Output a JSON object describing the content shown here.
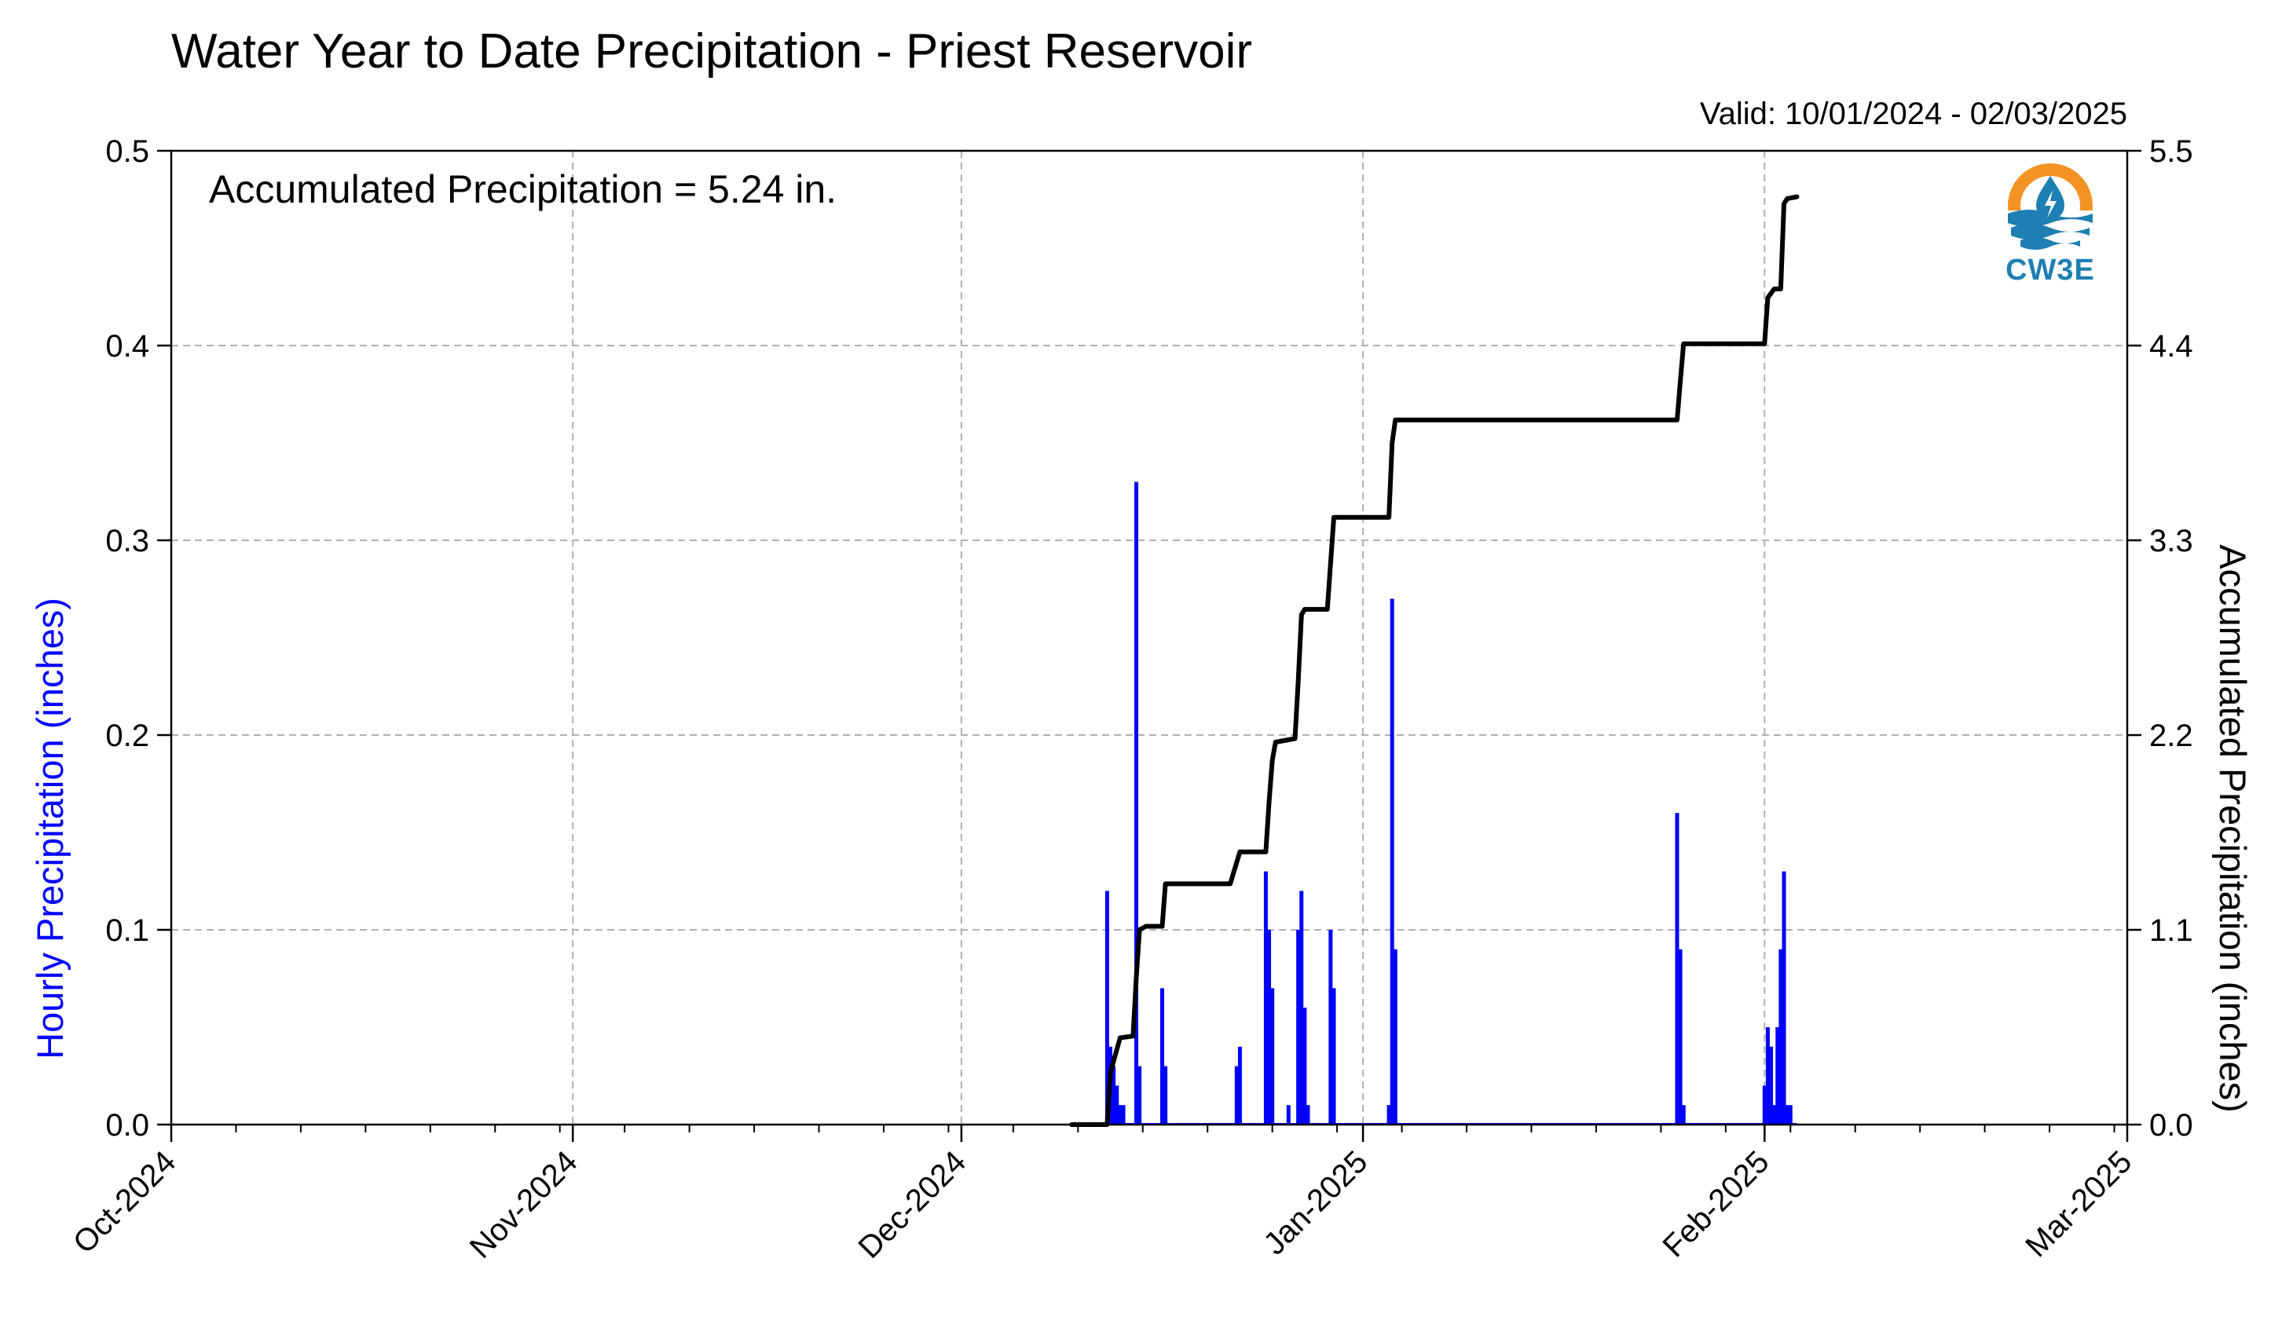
{
  "header": {
    "title": "Water Year to Date Precipitation - Priest Reservoir",
    "valid": "Valid: 10/01/2024 - 02/03/2025"
  },
  "annotation": "Accumulated Precipitation = 5.24 in.",
  "logo": {
    "text": "CW3E",
    "icon": "cw3e-logo-icon"
  },
  "colors": {
    "hourly": "#0000ff",
    "accumulated": "#000000",
    "grid": "#b0b0b0",
    "logo_orange": "#f39324",
    "logo_blue": "#1e7fb3"
  },
  "chart_data": {
    "type": "bar",
    "xlabel": "",
    "ylabel": "Hourly Precipitation (inches)",
    "y2label": "Accumulated Precipitation (inches)",
    "xlim": [
      "2024-10-01",
      "2025-03-01"
    ],
    "ylim": [
      0,
      0.5
    ],
    "y2lim": [
      0,
      5.5
    ],
    "grid": true,
    "x_ticks": [
      {
        "date": "2024-10-01",
        "label": "Oct-2024"
      },
      {
        "date": "2024-11-01",
        "label": "Nov-2024"
      },
      {
        "date": "2024-12-01",
        "label": "Dec-2024"
      },
      {
        "date": "2025-01-01",
        "label": "Jan-2025"
      },
      {
        "date": "2025-02-01",
        "label": "Feb-2025"
      },
      {
        "date": "2025-03-01",
        "label": "Mar-2025"
      }
    ],
    "y_ticks": [
      "0.0",
      "0.1",
      "0.2",
      "0.3",
      "0.4",
      "0.5"
    ],
    "y2_ticks": [
      "0.0",
      "1.1",
      "2.2",
      "3.3",
      "4.4",
      "5.5"
    ],
    "series": [
      {
        "name": "Hourly Precipitation",
        "kind": "bar",
        "points": [
          [
            "2024-12-12 06:00",
            0.12
          ],
          [
            "2024-12-12 12:00",
            0.04
          ],
          [
            "2024-12-12 18:00",
            0.03
          ],
          [
            "2024-12-13 00:00",
            0.02
          ],
          [
            "2024-12-13 06:00",
            0.01
          ],
          [
            "2024-12-13 12:00",
            0.01
          ],
          [
            "2024-12-14 12:00",
            0.33
          ],
          [
            "2024-12-14 18:00",
            0.03
          ],
          [
            "2024-12-16 12:00",
            0.07
          ],
          [
            "2024-12-16 18:00",
            0.03
          ],
          [
            "2024-12-22 06:00",
            0.03
          ],
          [
            "2024-12-22 12:00",
            0.04
          ],
          [
            "2024-12-24 12:00",
            0.13
          ],
          [
            "2024-12-24 18:00",
            0.1
          ],
          [
            "2024-12-25 00:00",
            0.07
          ],
          [
            "2024-12-26 06:00",
            0.01
          ],
          [
            "2024-12-27 00:00",
            0.1
          ],
          [
            "2024-12-27 06:00",
            0.12
          ],
          [
            "2024-12-27 12:00",
            0.06
          ],
          [
            "2024-12-27 18:00",
            0.01
          ],
          [
            "2024-12-29 12:00",
            0.1
          ],
          [
            "2024-12-29 18:00",
            0.07
          ],
          [
            "2025-01-03 00:00",
            0.01
          ],
          [
            "2025-01-03 06:00",
            0.27
          ],
          [
            "2025-01-03 12:00",
            0.09
          ],
          [
            "2025-01-25 06:00",
            0.16
          ],
          [
            "2025-01-25 12:00",
            0.09
          ],
          [
            "2025-01-25 18:00",
            0.01
          ],
          [
            "2025-02-01 00:00",
            0.02
          ],
          [
            "2025-02-01 06:00",
            0.05
          ],
          [
            "2025-02-01 12:00",
            0.04
          ],
          [
            "2025-02-01 18:00",
            0.01
          ],
          [
            "2025-02-02 00:00",
            0.05
          ],
          [
            "2025-02-02 06:00",
            0.09
          ],
          [
            "2025-02-02 12:00",
            0.13
          ],
          [
            "2025-02-02 18:00",
            0.01
          ],
          [
            "2025-02-03 00:00",
            0.01
          ]
        ]
      },
      {
        "name": "Accumulated Precipitation",
        "kind": "line",
        "points": [
          [
            "2024-12-09 12:00",
            0.0
          ],
          [
            "2024-12-12 06:00",
            0.0
          ],
          [
            "2024-12-12 12:00",
            0.29
          ],
          [
            "2024-12-12 18:00",
            0.36
          ],
          [
            "2024-12-13 06:00",
            0.49
          ],
          [
            "2024-12-14 06:00",
            0.5
          ],
          [
            "2024-12-14 12:00",
            0.83
          ],
          [
            "2024-12-14 18:00",
            1.1
          ],
          [
            "2024-12-15 06:00",
            1.12
          ],
          [
            "2024-12-16 12:00",
            1.12
          ],
          [
            "2024-12-16 18:00",
            1.36
          ],
          [
            "2024-12-21 18:00",
            1.36
          ],
          [
            "2024-12-22 12:00",
            1.54
          ],
          [
            "2024-12-24 12:00",
            1.54
          ],
          [
            "2024-12-24 18:00",
            1.82
          ],
          [
            "2024-12-25 00:00",
            2.06
          ],
          [
            "2024-12-25 06:00",
            2.16
          ],
          [
            "2024-12-26 18:00",
            2.18
          ],
          [
            "2024-12-27 00:00",
            2.5
          ],
          [
            "2024-12-27 06:00",
            2.88
          ],
          [
            "2024-12-27 12:00",
            2.91
          ],
          [
            "2024-12-29 06:00",
            2.91
          ],
          [
            "2024-12-29 18:00",
            3.43
          ],
          [
            "2025-01-03 00:00",
            3.43
          ],
          [
            "2025-01-03 06:00",
            3.85
          ],
          [
            "2025-01-03 12:00",
            3.98
          ],
          [
            "2025-01-25 06:00",
            3.98
          ],
          [
            "2025-01-25 12:00",
            4.2
          ],
          [
            "2025-01-25 18:00",
            4.41
          ],
          [
            "2025-02-01 00:00",
            4.41
          ],
          [
            "2025-02-01 06:00",
            4.67
          ],
          [
            "2025-02-01 18:00",
            4.72
          ],
          [
            "2025-02-02 06:00",
            4.72
          ],
          [
            "2025-02-02 12:00",
            5.2
          ],
          [
            "2025-02-02 18:00",
            5.23
          ],
          [
            "2025-02-03 12:00",
            5.24
          ]
        ]
      }
    ]
  }
}
